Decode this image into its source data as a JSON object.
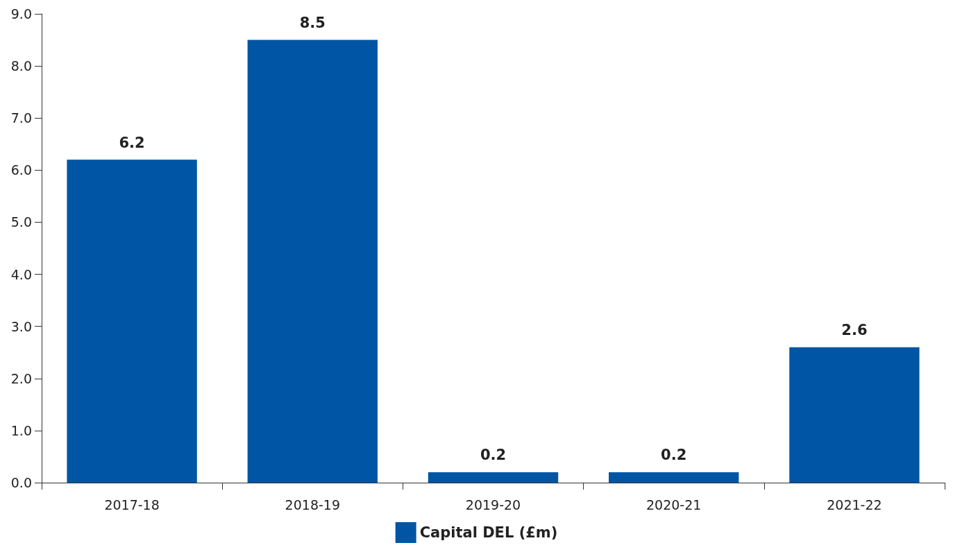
{
  "chart_data": {
    "type": "bar",
    "categories": [
      "2017-18",
      "2018-19",
      "2019-20",
      "2020-21",
      "2021-22"
    ],
    "series": [
      {
        "name": "Capital DEL (£m)",
        "color": "#0055a5",
        "values": [
          6.2,
          8.5,
          0.2,
          0.2,
          2.6
        ]
      }
    ],
    "ylim": [
      0,
      9
    ],
    "yticks": [
      {
        "value": 0,
        "label": "0.0"
      },
      {
        "value": 1,
        "label": "1.0"
      },
      {
        "value": 2,
        "label": "2.0"
      },
      {
        "value": 3,
        "label": "3.0"
      },
      {
        "value": 4,
        "label": "4.0"
      },
      {
        "value": 5,
        "label": "5.0"
      },
      {
        "value": 6,
        "label": "6.0"
      },
      {
        "value": 7,
        "label": "7.0"
      },
      {
        "value": 8,
        "label": "8.0"
      },
      {
        "value": 9,
        "label": "9.0"
      }
    ],
    "grid": false,
    "legend": "bottom",
    "data_labels": true
  }
}
